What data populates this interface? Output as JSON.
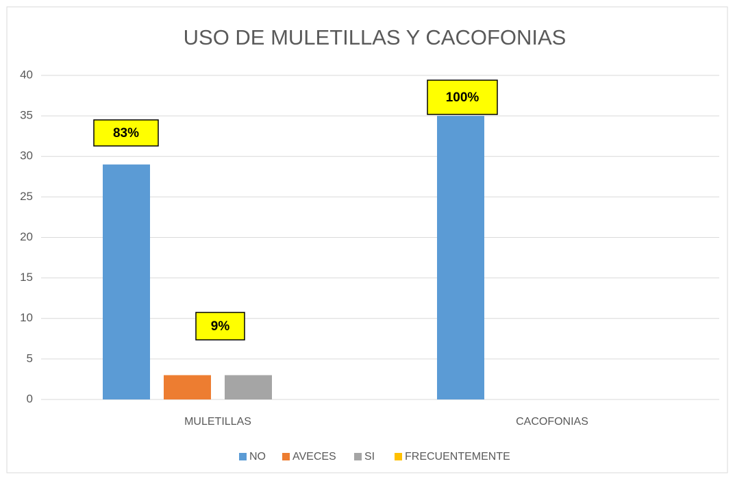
{
  "chart_data": {
    "type": "bar",
    "title": "USO DE MULETILLAS Y CACOFONIAS",
    "categories": [
      "MULETILLAS",
      "CACOFONIAS"
    ],
    "series": [
      {
        "name": "NO",
        "color": "#5b9bd5",
        "values": [
          29,
          35
        ]
      },
      {
        "name": "AVECES",
        "color": "#ed7d31",
        "values": [
          3,
          0
        ]
      },
      {
        "name": "SI",
        "color": "#a5a5a5",
        "values": [
          3,
          0
        ]
      },
      {
        "name": "FRECUENTEMENTE",
        "color": "#ffc000",
        "values": [
          0,
          0
        ]
      }
    ],
    "annotations": [
      "83%",
      "100%",
      "9%"
    ],
    "ylim": [
      0,
      40
    ],
    "yticks": [
      0,
      5,
      10,
      15,
      20,
      25,
      30,
      35,
      40
    ],
    "grid": true,
    "legend": "bottom"
  }
}
